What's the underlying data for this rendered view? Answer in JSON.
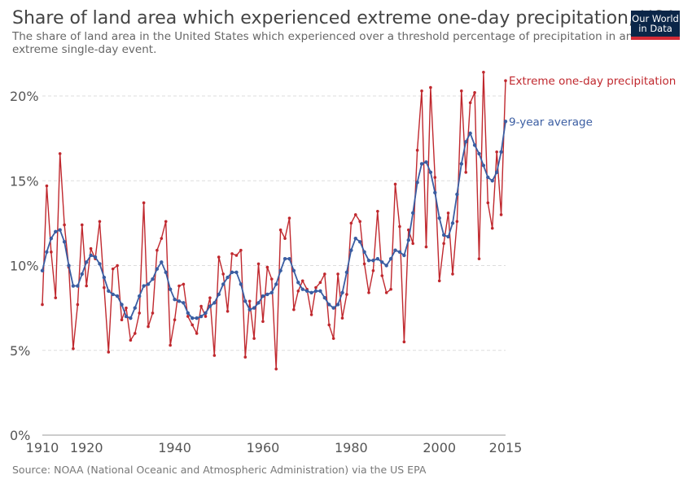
{
  "header": {
    "title": "Share of land area which experienced extreme one-day precipitation, USA",
    "subtitle": "The share of land area in the United States which experienced over a threshold percentage of precipitation in an extreme single-day event.",
    "logo_line1": "Our World",
    "logo_line2": "in Data"
  },
  "footer": {
    "source": "Source: NOAA (National Oceanic and Atmospheric Administration) via the US EPA"
  },
  "colors": {
    "annual": "#c0282e",
    "average": "#3a5da2",
    "grid": "#dddddd",
    "logo_bg": "#0b2648",
    "logo_accent": "#d42b36"
  },
  "chart_data": {
    "type": "line",
    "xlim": [
      1910,
      2015
    ],
    "ylim": [
      0,
      20
    ],
    "x_ticks": [
      "1910",
      "1920",
      "1940",
      "1960",
      "1980",
      "2000",
      "2015"
    ],
    "y_ticks": [
      "0%",
      "5%",
      "10%",
      "15%",
      "20%"
    ],
    "grid": "horizontal dashed",
    "series": [
      {
        "name": "Extreme one-day precipitation",
        "color": "#c0282e",
        "start_year": 1910,
        "values": [
          7.7,
          14.7,
          10.8,
          8.1,
          16.6,
          12.4,
          9.9,
          5.1,
          7.7,
          12.4,
          8.8,
          11.0,
          10.4,
          12.6,
          8.7,
          4.9,
          9.8,
          10.0,
          6.8,
          7.5,
          5.6,
          6.0,
          7.2,
          13.7,
          6.4,
          7.2,
          10.9,
          11.6,
          12.6,
          5.3,
          6.8,
          8.8,
          8.9,
          7.0,
          6.5,
          6.0,
          7.6,
          7.0,
          8.1,
          4.7,
          10.5,
          9.5,
          7.3,
          10.7,
          10.6,
          10.9,
          4.6,
          7.9,
          5.7,
          10.1,
          6.7,
          9.9,
          9.2,
          3.9,
          12.1,
          11.6,
          12.8,
          7.4,
          8.5,
          9.1,
          8.6,
          7.1,
          8.7,
          9.0,
          9.5,
          6.5,
          5.7,
          9.5,
          6.9,
          8.3,
          12.5,
          13.0,
          12.6,
          10.1,
          8.4,
          9.7,
          13.2,
          9.4,
          8.4,
          8.6,
          14.8,
          12.3,
          5.5,
          12.1,
          11.3,
          16.8,
          20.3,
          11.1,
          20.5,
          15.2,
          9.1,
          11.3,
          13.1,
          9.5,
          12.6,
          20.3,
          15.5,
          19.6,
          20.2,
          10.4,
          21.4,
          13.7,
          12.2,
          16.7,
          13.0,
          20.9
        ]
      },
      {
        "name": "9-year average",
        "color": "#3a5da2",
        "start_year": 1910,
        "values": [
          9.7,
          10.8,
          11.6,
          12.0,
          12.1,
          11.4,
          10.0,
          8.8,
          8.8,
          9.5,
          10.2,
          10.6,
          10.5,
          10.1,
          9.3,
          8.5,
          8.3,
          8.2,
          7.7,
          7.0,
          6.9,
          7.5,
          8.2,
          8.8,
          8.9,
          9.2,
          9.8,
          10.2,
          9.6,
          8.6,
          8.0,
          7.9,
          7.8,
          7.2,
          6.9,
          6.9,
          7.0,
          7.2,
          7.6,
          7.8,
          8.3,
          8.9,
          9.3,
          9.6,
          9.6,
          8.9,
          7.9,
          7.4,
          7.5,
          7.8,
          8.2,
          8.3,
          8.4,
          8.9,
          9.7,
          10.4,
          10.4,
          9.7,
          9.0,
          8.6,
          8.5,
          8.4,
          8.5,
          8.5,
          8.1,
          7.7,
          7.5,
          7.7,
          8.4,
          9.6,
          10.9,
          11.6,
          11.4,
          10.8,
          10.3,
          10.3,
          10.4,
          10.2,
          10.0,
          10.4,
          10.9,
          10.8,
          10.6,
          11.5,
          13.1,
          14.9,
          16.0,
          16.1,
          15.5,
          14.3,
          12.8,
          11.8,
          11.7,
          12.5,
          14.2,
          16.0,
          17.3,
          17.8,
          17.1,
          16.6,
          15.9,
          15.2,
          15.0,
          15.5,
          16.7,
          18.5
        ]
      }
    ]
  }
}
